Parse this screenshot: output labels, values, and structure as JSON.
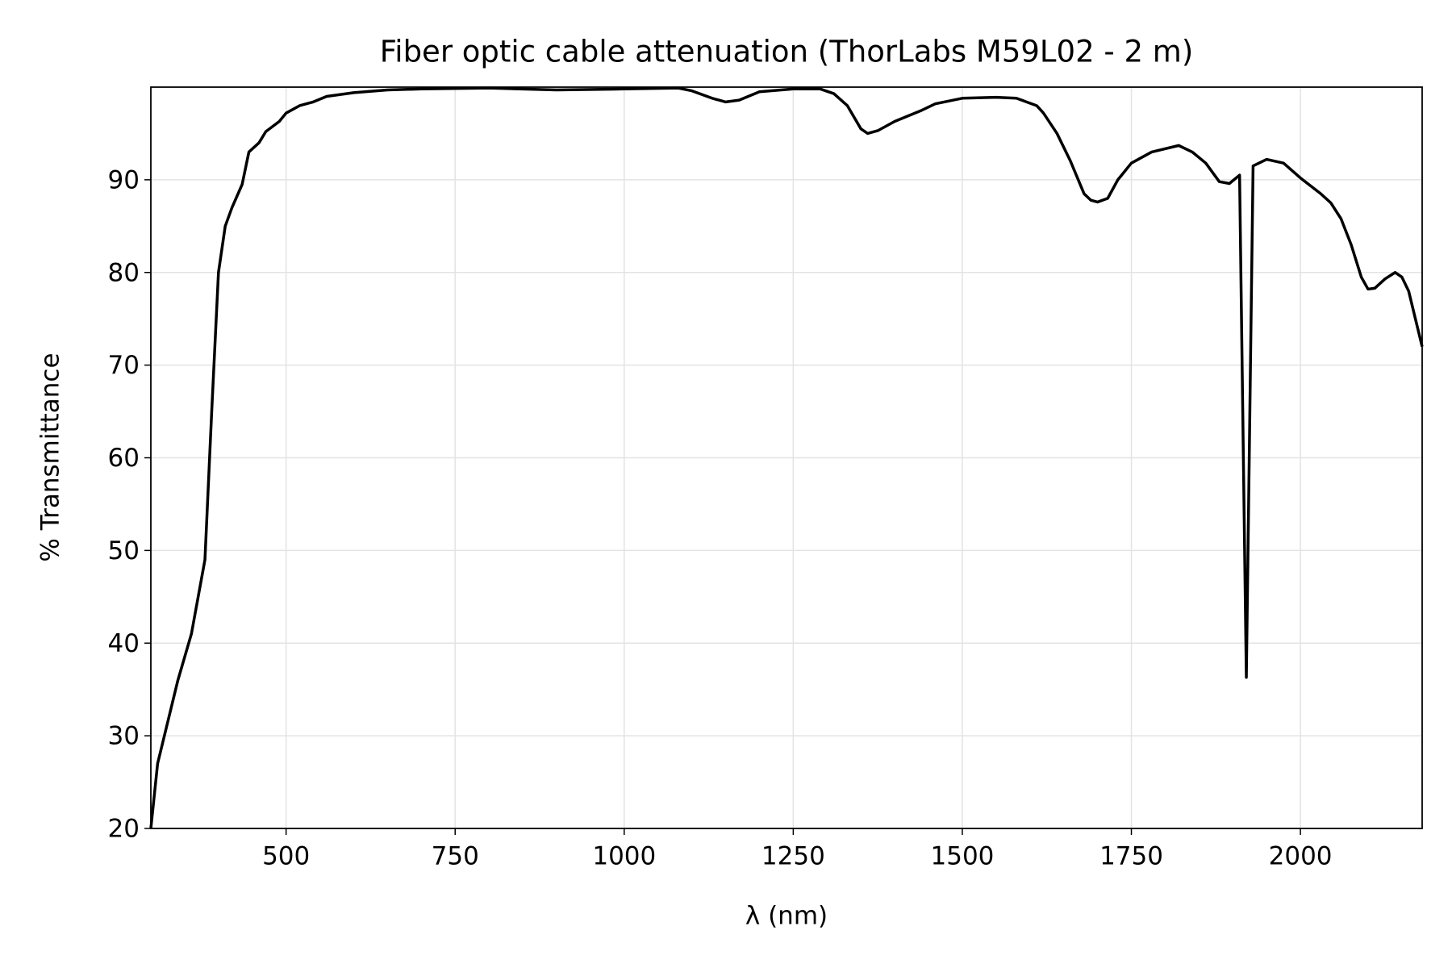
{
  "chart_data": {
    "type": "line",
    "title": "Fiber optic cable attenuation (ThorLabs M59L02 - 2 m)",
    "x_label": "λ (nm)",
    "y_label": "% Transmittance",
    "x": [
      300,
      310,
      320,
      340,
      360,
      370,
      380,
      390,
      400,
      410,
      420,
      435,
      445,
      460,
      470,
      490,
      500,
      520,
      540,
      560,
      600,
      650,
      700,
      800,
      900,
      1000,
      1080,
      1100,
      1130,
      1150,
      1170,
      1200,
      1250,
      1290,
      1310,
      1330,
      1350,
      1360,
      1375,
      1400,
      1440,
      1460,
      1500,
      1550,
      1580,
      1610,
      1620,
      1640,
      1660,
      1680,
      1690,
      1700,
      1715,
      1730,
      1750,
      1780,
      1820,
      1840,
      1860,
      1880,
      1895,
      1910,
      1920,
      1930,
      1950,
      1975,
      2000,
      2030,
      2045,
      2060,
      2075,
      2090,
      2100,
      2110,
      2125,
      2140,
      2150,
      2160,
      2170,
      2180
    ],
    "series": [
      {
        "name": "Transmittance",
        "color": "#000000",
        "values": [
          20,
          27,
          30,
          36,
          41,
          45,
          49,
          65,
          80,
          85,
          87,
          89.5,
          93,
          94,
          95.2,
          96.3,
          97.2,
          98,
          98.4,
          99,
          99.4,
          99.7,
          99.8,
          99.9,
          99.7,
          99.8,
          99.9,
          99.6,
          98.8,
          98.4,
          98.6,
          99.5,
          99.8,
          99.8,
          99.3,
          98,
          95.5,
          95,
          95.3,
          96.3,
          97.5,
          98.2,
          98.8,
          98.9,
          98.8,
          98,
          97.2,
          95,
          92,
          88.5,
          87.8,
          87.6,
          88,
          90,
          91.8,
          93,
          93.7,
          93,
          91.8,
          89.8,
          89.6,
          90.5,
          36.3,
          91.5,
          92.2,
          91.8,
          90.2,
          88.5,
          87.5,
          85.8,
          83,
          79.5,
          78.2,
          78.3,
          79.3,
          80,
          79.5,
          78,
          75,
          72
        ]
      }
    ],
    "xlim": [
      300,
      2180
    ],
    "ylim": [
      20,
      100
    ],
    "xticks": [
      500,
      750,
      1000,
      1250,
      1500,
      1750,
      2000
    ],
    "yticks": [
      20,
      30,
      40,
      50,
      60,
      70,
      80,
      90
    ],
    "grid": true
  }
}
